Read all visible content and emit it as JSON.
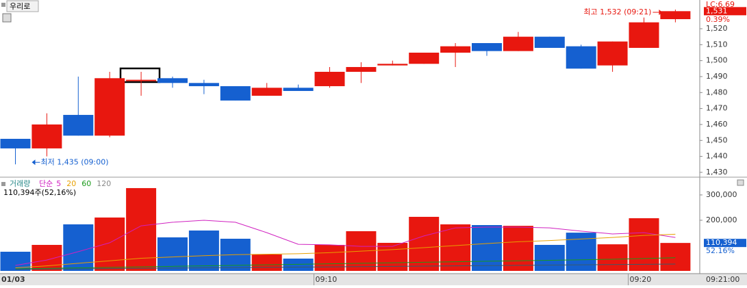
{
  "header": {
    "stock_name": "우리로"
  },
  "chart_data": [
    {
      "type": "candlestick",
      "categories": [
        "01/03",
        null,
        null,
        null,
        null,
        null,
        null,
        null,
        null,
        null,
        "09:10",
        null,
        null,
        null,
        null,
        null,
        null,
        null,
        null,
        null,
        "09:20",
        null
      ],
      "open": [
        1451,
        1445,
        1466,
        1453,
        1488,
        1489,
        1486,
        1484,
        1478,
        1483,
        1484,
        1493,
        1497,
        1498,
        1505,
        1511,
        1506,
        1515,
        1509,
        1497,
        1508,
        1526
      ],
      "high": [
        1451,
        1467,
        1490,
        1493,
        1493,
        1490,
        1488,
        1484,
        1486,
        1485,
        1496,
        1499,
        1500,
        1505,
        1511,
        1511,
        1518,
        1515,
        1510,
        1512,
        1527,
        1532
      ],
      "low": [
        1435,
        1440,
        1453,
        1452,
        1478,
        1483,
        1479,
        1475,
        1478,
        1482,
        1483,
        1486,
        1497,
        1498,
        1496,
        1503,
        1506,
        1508,
        1495,
        1493,
        1508,
        1524
      ],
      "close": [
        1445,
        1460,
        1453,
        1489,
        1488,
        1486,
        1484,
        1475,
        1483,
        1481,
        1493,
        1496,
        1498,
        1505,
        1509,
        1506,
        1515,
        1508,
        1495,
        1512,
        1524,
        1531
      ],
      "up_color": "#e8170f",
      "down_color": "#1560d0",
      "ylim": [
        1427.4,
        1538
      ],
      "yticks": [
        {
          "value": 1430,
          "label": "1,430"
        },
        {
          "value": 1440,
          "label": "1,440"
        },
        {
          "value": 1450,
          "label": "1,450"
        },
        {
          "value": 1460,
          "label": "1,460"
        },
        {
          "value": 1470,
          "label": "1,470"
        },
        {
          "value": 1480,
          "label": "1,480"
        },
        {
          "value": 1490,
          "label": "1,490"
        },
        {
          "value": 1500,
          "label": "1,500"
        },
        {
          "value": 1510,
          "label": "1,510"
        },
        {
          "value": 1520,
          "label": "1,520"
        }
      ],
      "last_price": {
        "value": 1531,
        "label": "1,531"
      },
      "change_label": "0.39%",
      "lc_label": "LC:6.69",
      "high_annotation": "최고 1,532 (09:21)",
      "low_annotation": "최저 1,435 (09:00)",
      "time_label": "09:21:00"
    },
    {
      "type": "volume",
      "title": "거래량",
      "ma_label": "단순",
      "values": [
        75700,
        102700,
        183800,
        210800,
        327000,
        132400,
        159500,
        127000,
        64900,
        48600,
        102700,
        156800,
        110800,
        213500,
        183800,
        181000,
        178000,
        102700,
        151000,
        105000,
        208000,
        110394
      ],
      "series": [
        {
          "name": "5",
          "color": "#d020c0",
          "values": [
            21600,
            43000,
            76000,
            111000,
            178000,
            192000,
            200000,
            192000,
            151000,
            105000,
            103000,
            97000,
            97000,
            138000,
            170000,
            173000,
            173000,
            170000,
            157000,
            146000,
            151000,
            132000
          ]
        },
        {
          "name": "20",
          "color": "#e8a000",
          "values": [
            12000,
            20000,
            30000,
            40000,
            50000,
            55000,
            60000,
            64000,
            66000,
            68000,
            72000,
            78000,
            84000,
            92000,
            100000,
            108000,
            115000,
            120000,
            126000,
            132000,
            140000,
            145000
          ]
        },
        {
          "name": "60",
          "color": "#1a9a1a",
          "values": [
            8000,
            10000,
            12000,
            14000,
            16000,
            18000,
            20000,
            22000,
            24000,
            26000,
            28000,
            30000,
            32000,
            34000,
            36000,
            38000,
            40000,
            42000,
            44000,
            46000,
            49000,
            52000
          ]
        },
        {
          "name": "120",
          "color": "#3a5a6a",
          "values": [
            6000,
            7000,
            8000,
            9000,
            10000,
            11000,
            12000,
            13000,
            14000,
            15000,
            16000,
            17000,
            18000,
            19000,
            20000,
            21000,
            22000,
            23000,
            24000,
            25000,
            26000,
            27000
          ]
        }
      ],
      "ylim": [
        0,
        362000
      ],
      "yticks": [
        {
          "value": 200000,
          "label": "200,000"
        },
        {
          "value": 300000,
          "label": "300,000"
        }
      ],
      "summary_label": "110,394주(52,16%)",
      "last_value": {
        "value": 110394,
        "label": "110,394"
      },
      "ratio_label": "52.16%"
    }
  ]
}
